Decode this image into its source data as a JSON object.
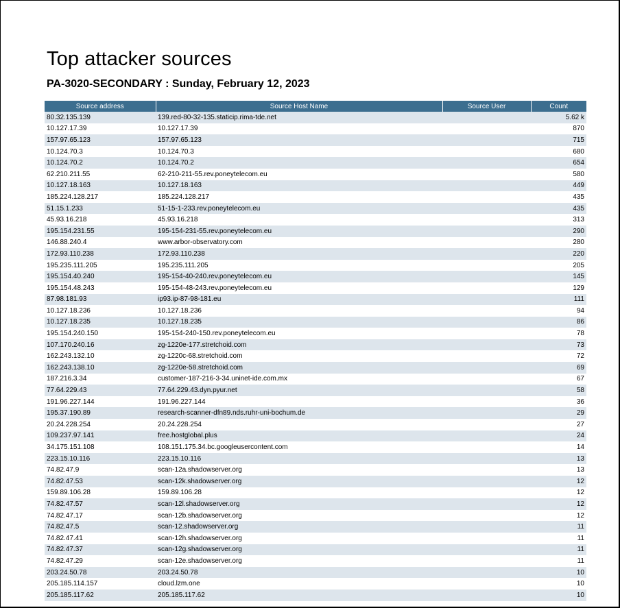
{
  "report": {
    "title": "Top attacker sources",
    "subtitle": "PA-3020-SECONDARY : Sunday, February 12, 2023"
  },
  "table": {
    "headers": [
      "Source address",
      "Source Host Name",
      "Source User",
      "Count"
    ],
    "rows": [
      [
        "80.32.135.139",
        "139.red-80-32-135.staticip.rima-tde.net",
        "",
        "5.62 k"
      ],
      [
        "10.127.17.39",
        "10.127.17.39",
        "",
        "870"
      ],
      [
        "157.97.65.123",
        "157.97.65.123",
        "",
        "715"
      ],
      [
        "10.124.70.3",
        "10.124.70.3",
        "",
        "680"
      ],
      [
        "10.124.70.2",
        "10.124.70.2",
        "",
        "654"
      ],
      [
        "62.210.211.55",
        "62-210-211-55.rev.poneytelecom.eu",
        "",
        "580"
      ],
      [
        "10.127.18.163",
        "10.127.18.163",
        "",
        "449"
      ],
      [
        "185.224.128.217",
        "185.224.128.217",
        "",
        "435"
      ],
      [
        "51.15.1.233",
        "51-15-1-233.rev.poneytelecom.eu",
        "",
        "435"
      ],
      [
        "45.93.16.218",
        "45.93.16.218",
        "",
        "313"
      ],
      [
        "195.154.231.55",
        "195-154-231-55.rev.poneytelecom.eu",
        "",
        "290"
      ],
      [
        "146.88.240.4",
        "www.arbor-observatory.com",
        "",
        "280"
      ],
      [
        "172.93.110.238",
        "172.93.110.238",
        "",
        "220"
      ],
      [
        "195.235.111.205",
        "195.235.111.205",
        "",
        "205"
      ],
      [
        "195.154.40.240",
        "195-154-40-240.rev.poneytelecom.eu",
        "",
        "145"
      ],
      [
        "195.154.48.243",
        "195-154-48-243.rev.poneytelecom.eu",
        "",
        "129"
      ],
      [
        "87.98.181.93",
        "ip93.ip-87-98-181.eu",
        "",
        "111"
      ],
      [
        "10.127.18.236",
        "10.127.18.236",
        "",
        "94"
      ],
      [
        "10.127.18.235",
        "10.127.18.235",
        "",
        "86"
      ],
      [
        "195.154.240.150",
        "195-154-240-150.rev.poneytelecom.eu",
        "",
        "78"
      ],
      [
        "107.170.240.16",
        "zg-1220e-177.stretchoid.com",
        "",
        "73"
      ],
      [
        "162.243.132.10",
        "zg-1220c-68.stretchoid.com",
        "",
        "72"
      ],
      [
        "162.243.138.10",
        "zg-1220e-58.stretchoid.com",
        "",
        "69"
      ],
      [
        "187.216.3.34",
        "customer-187-216-3-34.uninet-ide.com.mx",
        "",
        "67"
      ],
      [
        "77.64.229.43",
        "77.64.229.43.dyn.pyur.net",
        "",
        "58"
      ],
      [
        "191.96.227.144",
        "191.96.227.144",
        "",
        "36"
      ],
      [
        "195.37.190.89",
        "research-scanner-dfn89.nds.ruhr-uni-bochum.de",
        "",
        "29"
      ],
      [
        "20.24.228.254",
        "20.24.228.254",
        "",
        "27"
      ],
      [
        "109.237.97.141",
        "free.hostglobal.plus",
        "",
        "24"
      ],
      [
        "34.175.151.108",
        "108.151.175.34.bc.googleusercontent.com",
        "",
        "14"
      ],
      [
        "223.15.10.116",
        "223.15.10.116",
        "",
        "13"
      ],
      [
        "74.82.47.9",
        "scan-12a.shadowserver.org",
        "",
        "13"
      ],
      [
        "74.82.47.53",
        "scan-12k.shadowserver.org",
        "",
        "12"
      ],
      [
        "159.89.106.28",
        "159.89.106.28",
        "",
        "12"
      ],
      [
        "74.82.47.57",
        "scan-12l.shadowserver.org",
        "",
        "12"
      ],
      [
        "74.82.47.17",
        "scan-12b.shadowserver.org",
        "",
        "12"
      ],
      [
        "74.82.47.5",
        "scan-12.shadowserver.org",
        "",
        "11"
      ],
      [
        "74.82.47.41",
        "scan-12h.shadowserver.org",
        "",
        "11"
      ],
      [
        "74.82.47.37",
        "scan-12g.shadowserver.org",
        "",
        "11"
      ],
      [
        "74.82.47.29",
        "scan-12e.shadowserver.org",
        "",
        "11"
      ],
      [
        "203.24.50.78",
        "203.24.50.78",
        "",
        "10"
      ],
      [
        "205.185.114.157",
        "cloud.lzm.one",
        "",
        "10"
      ],
      [
        "205.185.117.62",
        "205.185.117.62",
        "",
        "10"
      ]
    ]
  },
  "colors": {
    "header_bg": "#3c6e8f",
    "row_stripe": "#dde5ec"
  }
}
